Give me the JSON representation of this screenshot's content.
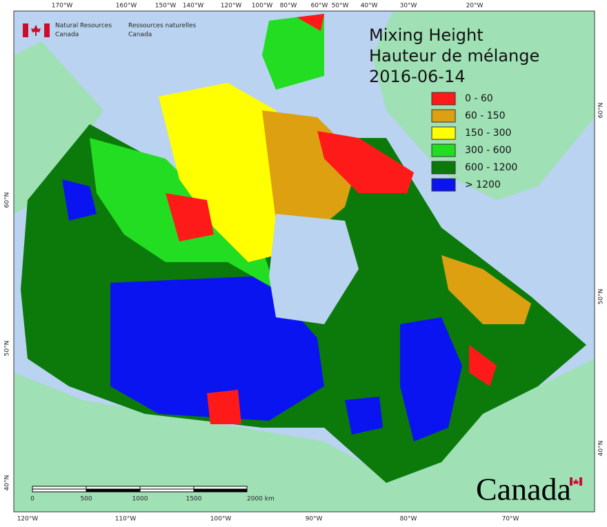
{
  "agency": {
    "en_line1": "Natural Resources",
    "en_line2": "Canada",
    "fr_line1": "Ressources naturelles",
    "fr_line2": "Canada"
  },
  "title": [
    "Mixing Height",
    "Hauteur de mélange",
    "2016-06-14"
  ],
  "legend": [
    {
      "label": "0 - 60",
      "color": "#ff1a1a"
    },
    {
      "label": "60 - 150",
      "color": "#dca010"
    },
    {
      "label": "150 - 300",
      "color": "#ffff00"
    },
    {
      "label": "300 - 600",
      "color": "#22dd22"
    },
    {
      "label": "600 - 1200",
      "color": "#0b7a0b"
    },
    {
      "label": "> 1200",
      "color": "#0a14f0"
    }
  ],
  "top_labels": [
    "170°W",
    "160°W",
    "150°W",
    "140°W",
    "120°W",
    "100°W",
    "80°W",
    "60°W",
    "50°W",
    "40°W",
    "30°W",
    "20°W"
  ],
  "bottom_labels": [
    "120°W",
    "110°W",
    "100°W",
    "90°W",
    "80°W",
    "70°W"
  ],
  "left_labels": [
    "60°N",
    "50°N",
    "40°N"
  ],
  "right_labels": [
    "60°N",
    "50°N",
    "40°N"
  ],
  "scale_bar": [
    "0",
    "500",
    "1000",
    "1500",
    "2000 km"
  ],
  "wordmark": "Canada"
}
